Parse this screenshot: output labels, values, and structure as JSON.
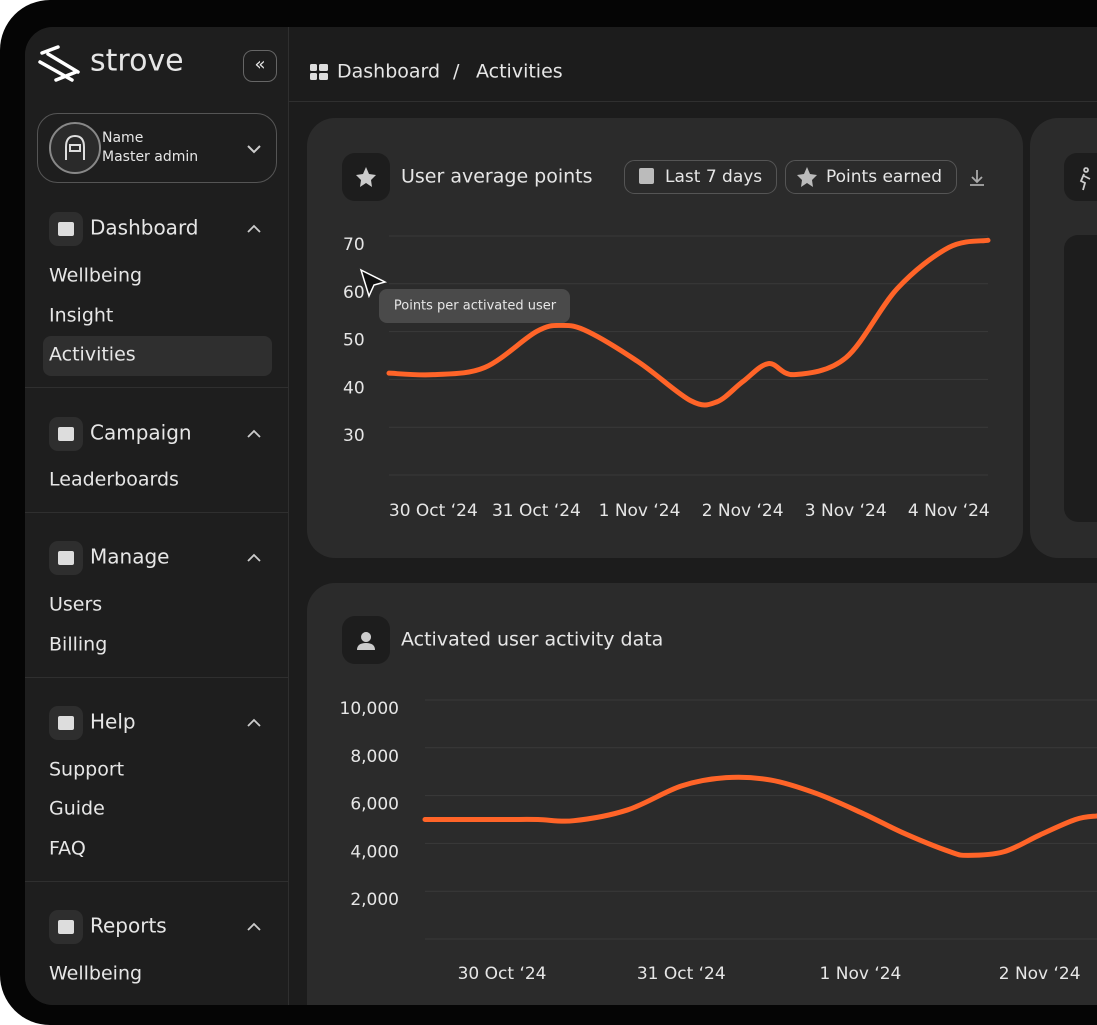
{
  "sidebar": {
    "brand": "strove",
    "profile": {
      "name": "Name",
      "role": "Master admin"
    },
    "sections": [
      {
        "title": "Dashboard",
        "items": [
          "Wellbeing",
          "Insight",
          "Activities"
        ]
      },
      {
        "title": "Campaign",
        "items": [
          "Leaderboards"
        ]
      },
      {
        "title": "Manage",
        "items": [
          "Users",
          "Billing"
        ]
      },
      {
        "title": "Help",
        "items": [
          "Support",
          "Guide",
          "FAQ"
        ]
      },
      {
        "title": "Reports",
        "items": [
          "Wellbeing"
        ]
      }
    ]
  },
  "breadcrumb": {
    "items": [
      "Dashboard",
      "Activities"
    ],
    "separator": "/"
  },
  "chart_data": [
    {
      "type": "line",
      "title": "User average points",
      "filters": [
        "Last 7 days",
        "Points earned"
      ],
      "tooltip": "Points per activated user",
      "x": [
        -0.43,
        0,
        0.5,
        1,
        1.25,
        1.5,
        2,
        2.5,
        2.75,
        3,
        3.25,
        3.5,
        4,
        4.5,
        5,
        5.38
      ],
      "xlim": [
        -0.43,
        5.38
      ],
      "xticks": [
        {
          "value": 0,
          "label": "30 Oct ‘24"
        },
        {
          "value": 1,
          "label": "31 Oct ‘24"
        },
        {
          "value": 2,
          "label": "1 Nov ‘24"
        },
        {
          "value": 3,
          "label": "2 Nov ‘24"
        },
        {
          "value": 4,
          "label": "3 Nov ‘24"
        },
        {
          "value": 5,
          "label": "4 Nov ‘24"
        }
      ],
      "ylim": [
        20,
        70
      ],
      "yticks": [
        70,
        60,
        50,
        40,
        30
      ],
      "grid": true,
      "series": [
        {
          "color": "#ff6428",
          "values": [
            41.3,
            41,
            42.5,
            50,
            51.3,
            50,
            43.5,
            35.5,
            35.3,
            39.5,
            43.3,
            41,
            44.5,
            59,
            67.6,
            69.1
          ]
        }
      ]
    },
    {
      "type": "line",
      "title": "Activated user activity data",
      "x": [
        -0.43,
        0,
        0.2,
        0.4,
        0.7,
        1,
        1.25,
        1.5,
        1.75,
        2,
        2.25,
        2.5,
        2.6,
        2.8,
        3,
        3.2,
        3.32
      ],
      "xlim": [
        -0.43,
        3.32
      ],
      "xticks": [
        {
          "value": 0,
          "label": "30 Oct ‘24"
        },
        {
          "value": 1,
          "label": "31 Oct ‘24"
        },
        {
          "value": 2,
          "label": "1 Nov ‘24"
        },
        {
          "value": 3,
          "label": "2 Nov ‘24"
        }
      ],
      "ylim": [
        0,
        10000
      ],
      "yticks": [
        {
          "value": 10000,
          "label": "10,000"
        },
        {
          "value": 8000,
          "label": "8,000"
        },
        {
          "value": 6000,
          "label": "6,000"
        },
        {
          "value": 4000,
          "label": "4,000"
        },
        {
          "value": 2000,
          "label": "2,000"
        }
      ],
      "grid": true,
      "series": [
        {
          "color": "#ff6428",
          "values": [
            5000,
            5000,
            5000,
            4950,
            5400,
            6400,
            6750,
            6650,
            6100,
            5300,
            4400,
            3650,
            3500,
            3650,
            4350,
            5000,
            5150
          ]
        }
      ]
    }
  ]
}
